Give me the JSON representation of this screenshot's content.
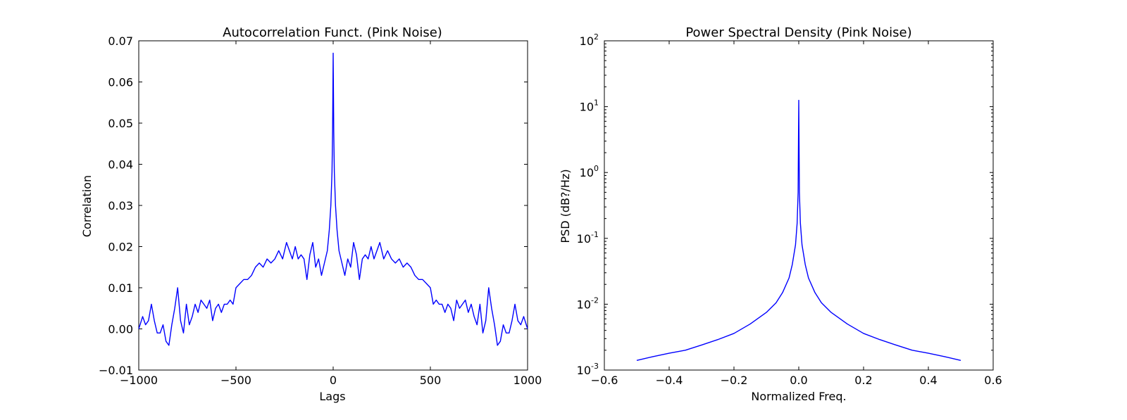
{
  "chart_data": [
    {
      "type": "line",
      "title": "Autocorrelation Funct. (Pink Noise)",
      "xlabel": "Lags",
      "ylabel": "Correlation",
      "xlim": [
        -1000,
        1000
      ],
      "ylim": [
        -0.01,
        0.07
      ],
      "xticks": [
        -1000,
        -500,
        0,
        500,
        1000
      ],
      "xtick_labels": [
        "−1000",
        "−500",
        "0",
        "500",
        "1000"
      ],
      "yticks": [
        -0.01,
        0.0,
        0.01,
        0.02,
        0.03,
        0.04,
        0.05,
        0.06,
        0.07
      ],
      "ytick_labels": [
        "−0.01",
        "0.00",
        "0.01",
        "0.02",
        "0.03",
        "0.04",
        "0.05",
        "0.06",
        "0.07"
      ],
      "grid": false,
      "color": "#0000ff",
      "series": [
        {
          "x": [
            -1000,
            -980,
            -965,
            -950,
            -935,
            -920,
            -905,
            -890,
            -875,
            -860,
            -845,
            -830,
            -815,
            -800,
            -785,
            -770,
            -755,
            -740,
            -725,
            -710,
            -695,
            -680,
            -665,
            -650,
            -635,
            -620,
            -605,
            -590,
            -575,
            -560,
            -545,
            -530,
            -515,
            -500,
            -480,
            -460,
            -440,
            -420,
            -400,
            -380,
            -360,
            -340,
            -320,
            -300,
            -280,
            -260,
            -240,
            -225,
            -210,
            -195,
            -180,
            -165,
            -150,
            -135,
            -120,
            -105,
            -90,
            -75,
            -60,
            -45,
            -30,
            -20,
            -12,
            -6,
            -3,
            0,
            3,
            6,
            12,
            20,
            30,
            45,
            60,
            75,
            90,
            105,
            120,
            135,
            150,
            165,
            180,
            195,
            210,
            225,
            240,
            260,
            280,
            300,
            320,
            340,
            360,
            380,
            400,
            420,
            440,
            460,
            480,
            500,
            515,
            530,
            545,
            560,
            575,
            590,
            605,
            620,
            635,
            650,
            665,
            680,
            695,
            710,
            725,
            740,
            755,
            770,
            785,
            800,
            815,
            830,
            845,
            860,
            875,
            890,
            905,
            920,
            935,
            950,
            965,
            980,
            1000
          ],
          "y": [
            0.0,
            0.003,
            0.001,
            0.002,
            0.006,
            0.002,
            -0.001,
            -0.001,
            0.001,
            -0.003,
            -0.004,
            0.001,
            0.005,
            0.01,
            0.002,
            -0.001,
            0.006,
            0.001,
            0.003,
            0.006,
            0.004,
            0.007,
            0.006,
            0.005,
            0.007,
            0.002,
            0.005,
            0.006,
            0.004,
            0.006,
            0.006,
            0.007,
            0.006,
            0.01,
            0.011,
            0.012,
            0.012,
            0.013,
            0.015,
            0.016,
            0.015,
            0.017,
            0.016,
            0.017,
            0.019,
            0.017,
            0.021,
            0.019,
            0.017,
            0.02,
            0.017,
            0.018,
            0.017,
            0.012,
            0.018,
            0.021,
            0.015,
            0.017,
            0.013,
            0.016,
            0.019,
            0.024,
            0.03,
            0.038,
            0.048,
            0.067,
            0.048,
            0.038,
            0.03,
            0.024,
            0.019,
            0.016,
            0.013,
            0.017,
            0.015,
            0.021,
            0.018,
            0.012,
            0.017,
            0.018,
            0.017,
            0.02,
            0.017,
            0.019,
            0.021,
            0.017,
            0.019,
            0.017,
            0.016,
            0.017,
            0.015,
            0.016,
            0.015,
            0.013,
            0.012,
            0.012,
            0.011,
            0.01,
            0.006,
            0.007,
            0.006,
            0.006,
            0.004,
            0.006,
            0.005,
            0.002,
            0.007,
            0.005,
            0.006,
            0.007,
            0.004,
            0.006,
            0.003,
            0.001,
            0.006,
            -0.001,
            0.002,
            0.01,
            0.005,
            0.001,
            -0.004,
            -0.003,
            0.001,
            -0.001,
            -0.001,
            0.002,
            0.006,
            0.002,
            0.001,
            0.003,
            0.0
          ]
        }
      ]
    },
    {
      "type": "line",
      "title": "Power Spectral Density (Pink Noise)",
      "xlabel": "Normalized Freq.",
      "ylabel": "PSD (dB?/Hz)",
      "xlim": [
        -0.6,
        0.6
      ],
      "ylim": [
        0.001,
        100
      ],
      "yscale": "log",
      "xticks": [
        -0.6,
        -0.4,
        -0.2,
        0.0,
        0.2,
        0.4,
        0.6
      ],
      "xtick_labels": [
        "−0.6",
        "−0.4",
        "−0.2",
        "0.0",
        "0.2",
        "0.4",
        "0.6"
      ],
      "yticks": [
        0.001,
        0.01,
        0.1,
        1,
        10,
        100
      ],
      "ytick_labels": [
        {
          "base": "10",
          "exp": "-3"
        },
        {
          "base": "10",
          "exp": "-2"
        },
        {
          "base": "10",
          "exp": "-1"
        },
        {
          "base": "10",
          "exp": "0"
        },
        {
          "base": "10",
          "exp": "1"
        },
        {
          "base": "10",
          "exp": "2"
        }
      ],
      "grid": false,
      "color": "#0000ff",
      "series": [
        {
          "x": [
            -0.5,
            -0.45,
            -0.4,
            -0.35,
            -0.3,
            -0.25,
            -0.2,
            -0.15,
            -0.1,
            -0.07,
            -0.05,
            -0.03,
            -0.02,
            -0.01,
            -0.005,
            -0.002,
            0.0,
            0.002,
            0.005,
            0.01,
            0.02,
            0.03,
            0.05,
            0.07,
            0.1,
            0.15,
            0.2,
            0.25,
            0.3,
            0.35,
            0.4,
            0.45,
            0.5
          ],
          "y": [
            0.0014,
            0.0016,
            0.0018,
            0.002,
            0.0024,
            0.0029,
            0.0036,
            0.005,
            0.0075,
            0.0105,
            0.015,
            0.025,
            0.04,
            0.08,
            0.17,
            0.5,
            12.5,
            0.5,
            0.17,
            0.08,
            0.04,
            0.025,
            0.015,
            0.0105,
            0.0075,
            0.005,
            0.0036,
            0.0029,
            0.0024,
            0.002,
            0.0018,
            0.0016,
            0.0014
          ]
        }
      ]
    }
  ]
}
